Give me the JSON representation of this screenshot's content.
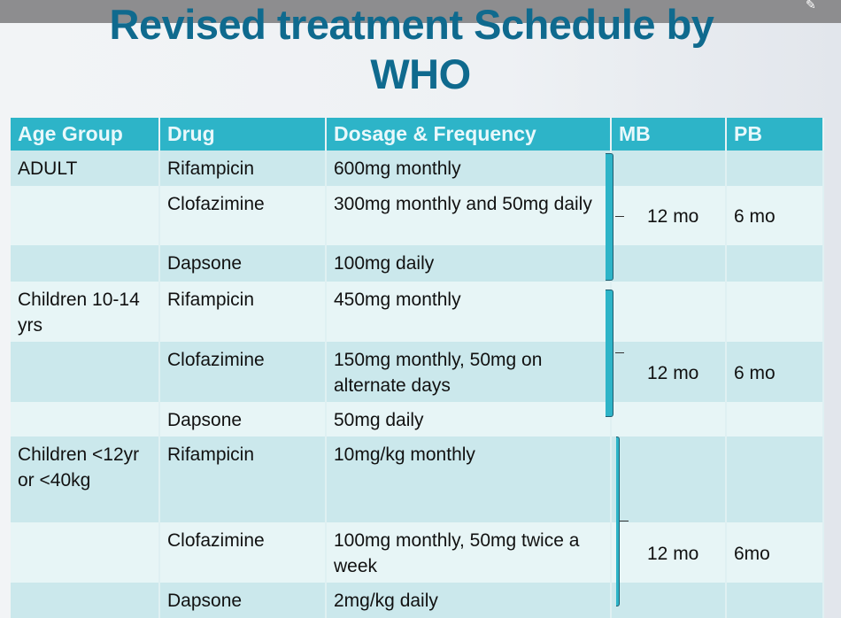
{
  "title": {
    "line1": "Revised treatment Schedule  by",
    "line2": "WHO"
  },
  "table": {
    "headers": [
      "Age Group",
      "Drug",
      "Dosage & Frequency",
      "MB",
      "PB"
    ],
    "rows": [
      {
        "age": "ADULT",
        "drug": "Rifampicin",
        "dose": "600mg monthly",
        "mb": "",
        "pb": ""
      },
      {
        "age": "",
        "drug": "Clofazimine",
        "dose": "300mg monthly and 50mg daily",
        "mb": "12 mo",
        "pb": "6 mo"
      },
      {
        "age": "",
        "drug": "Dapsone",
        "dose": "100mg daily",
        "mb": "",
        "pb": ""
      },
      {
        "age": "Children 10-14 yrs",
        "drug": "Rifampicin",
        "dose": "450mg monthly",
        "mb": "",
        "pb": ""
      },
      {
        "age": "",
        "drug": "Clofazimine",
        "dose": "150mg monthly, 50mg on alternate days",
        "mb": "12 mo",
        "pb": "6 mo"
      },
      {
        "age": "",
        "drug": "Dapsone",
        "dose": "50mg daily",
        "mb": "",
        "pb": ""
      },
      {
        "age": "Children <12yr or <40kg",
        "drug": "Rifampicin",
        "dose": "10mg/kg monthly",
        "mb": "",
        "pb": ""
      },
      {
        "age": "",
        "drug": "Clofazimine",
        "dose": "100mg monthly, 50mg twice a week",
        "mb": "12 mo",
        "pb": "6mo"
      },
      {
        "age": "",
        "drug": "Dapsone",
        "dose": "2mg/kg daily",
        "mb": "",
        "pb": ""
      }
    ]
  }
}
